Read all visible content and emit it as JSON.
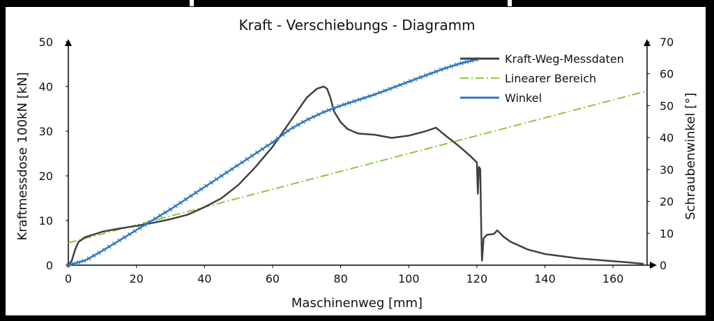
{
  "chart_data": {
    "type": "line",
    "title": "Kraft - Verschiebungs - Diagramm",
    "xlabel": "Maschinenweg [mm]",
    "ylabel_left": "Kraftmessdose 100kN [kN]",
    "ylabel_right": "Schraubenwinkel [°]",
    "xlim": [
      0,
      170
    ],
    "ylim_left": [
      0,
      50
    ],
    "ylim_right": [
      0,
      70
    ],
    "x_ticks": [
      "0",
      "20",
      "40",
      "60",
      "80",
      "100",
      "120",
      "140",
      "160"
    ],
    "y_left_ticks": [
      "0",
      "10",
      "20",
      "30",
      "40",
      "50"
    ],
    "y_right_ticks": [
      "0",
      "10",
      "20",
      "30",
      "40",
      "50",
      "60",
      "70"
    ],
    "grid": false,
    "legend_position": "top-right",
    "series": [
      {
        "name": "Kraft-Weg-Messdaten",
        "axis": "left",
        "color": "#404040",
        "x": [
          0,
          1,
          2,
          3,
          5,
          8,
          10,
          15,
          20,
          25,
          30,
          35,
          40,
          45,
          50,
          55,
          60,
          65,
          70,
          73,
          75,
          76,
          77,
          78,
          80,
          82,
          85,
          90,
          95,
          100,
          105,
          108,
          110,
          115,
          118,
          120,
          120.3,
          120.6,
          121,
          121.3,
          121.5,
          121.7,
          122,
          123,
          125,
          126,
          127,
          128,
          130,
          135,
          140,
          150,
          160,
          165,
          169
        ],
        "y": [
          0,
          1,
          3.5,
          5.2,
          6.3,
          7,
          7.5,
          8.2,
          8.8,
          9.5,
          10.3,
          11.3,
          13,
          15,
          18,
          22,
          26.5,
          32,
          37.5,
          39.5,
          40,
          39.5,
          37.5,
          34.5,
          32,
          30.5,
          29.5,
          29.2,
          28.5,
          29,
          30,
          30.8,
          29.5,
          26.5,
          24.5,
          23,
          16,
          22,
          21.5,
          8,
          1,
          3,
          6,
          6.8,
          7,
          7.8,
          7,
          6.3,
          5.2,
          3.5,
          2.5,
          1.5,
          0.9,
          0.6,
          0.3
        ]
      },
      {
        "name": "Linearer Bereich",
        "axis": "left",
        "color": "#8dc63f",
        "style": "dash-dot",
        "x": [
          0,
          170
        ],
        "y": [
          5,
          39
        ]
      },
      {
        "name": "Winkel",
        "axis": "right",
        "color": "#2f76c2",
        "marker": "x",
        "x": [
          0,
          5,
          10,
          20,
          30,
          40,
          50,
          60,
          65,
          70,
          75,
          80,
          90,
          100,
          110,
          115,
          120
        ],
        "y": [
          0,
          1.5,
          4.5,
          11,
          17.5,
          24.5,
          31.5,
          38.5,
          42.5,
          45.5,
          48,
          50,
          53.5,
          57.5,
          61.5,
          63.2,
          64.5
        ]
      }
    ]
  }
}
